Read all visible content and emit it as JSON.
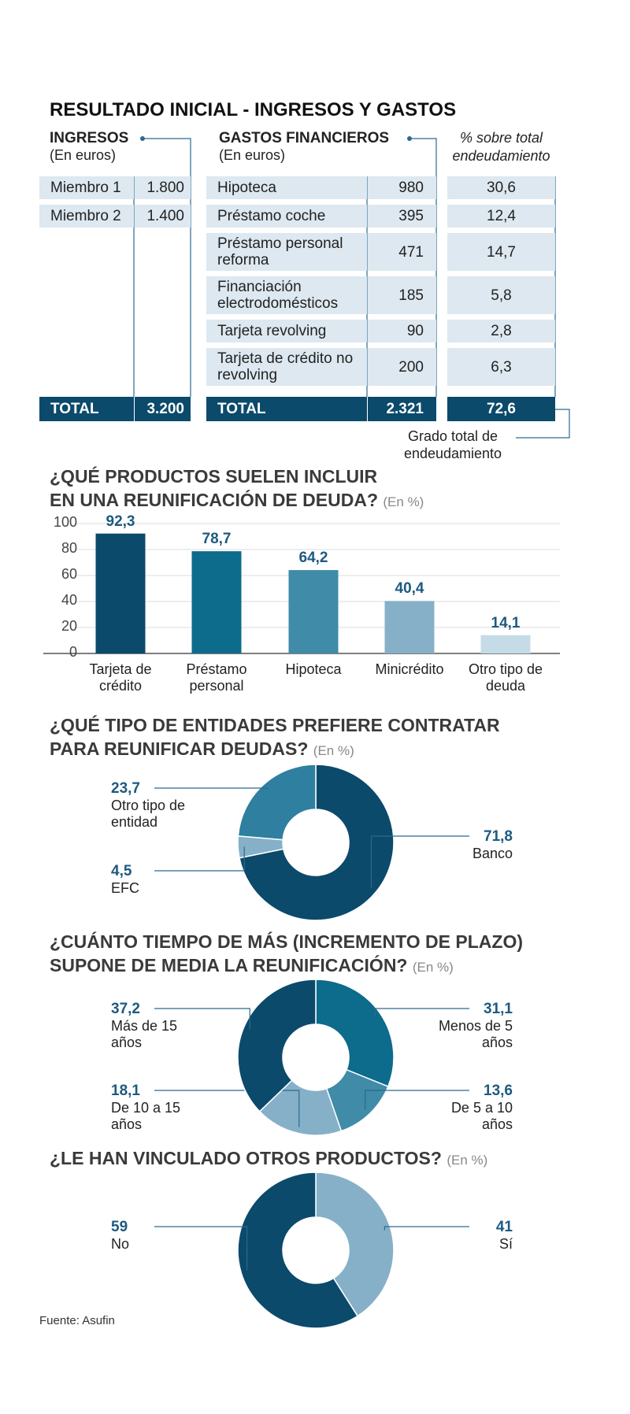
{
  "title": "RESULTADO INICIAL - INGRESOS Y GASTOS",
  "income_table": {
    "header": "INGRESOS",
    "unit": "(En euros)",
    "rows": [
      [
        "Miembro 1",
        "1.800"
      ],
      [
        "Miembro 2",
        "1.400"
      ]
    ],
    "total": [
      "TOTAL",
      "3.200"
    ]
  },
  "expenses_table": {
    "header": "GASTOS FINANCIEROS",
    "unit": "(En euros)",
    "share_header": "% sobre total endeudamiento",
    "rows": [
      [
        "Hipoteca",
        "980",
        "30,6"
      ],
      [
        "Préstamo coche",
        "395",
        "12,4"
      ],
      [
        "Préstamo personal reforma",
        "471",
        "14,7"
      ],
      [
        "Financiación electrodomésticos",
        "185",
        "5,8"
      ],
      [
        "Tarjeta revolving",
        "90",
        "2,8"
      ],
      [
        "Tarjeta de crédito no revolving",
        "200",
        "6,3"
      ]
    ],
    "total": [
      "TOTAL",
      "2.321",
      "72,6"
    ],
    "total_note": "Grado total de endeudamiento"
  },
  "chart_data": [
    {
      "type": "bar",
      "title": [
        "¿QUÉ PRODUCTOS SUELEN INCLUIR",
        "EN UNA REUNIFICACIÓN DE DEUDA?"
      ],
      "subtitle": "(En %)",
      "categories": [
        "Tarjeta de crédito",
        "Préstamo personal",
        "Hipoteca",
        "Minicrédito",
        "Otro tipo de deuda"
      ],
      "values": [
        92.3,
        78.7,
        64.2,
        40.4,
        14.1
      ],
      "value_labels": [
        "92,3",
        "78,7",
        "64,2",
        "40,4",
        "14,1"
      ],
      "colors": [
        "#0b4a6b",
        "#0d6b8c",
        "#3f8ba8",
        "#86b0c8",
        "#c5dbe7"
      ],
      "ylim": [
        0,
        100
      ],
      "yticks": [
        0,
        20,
        40,
        60,
        80,
        100
      ],
      "grid": true
    },
    {
      "type": "donut",
      "title": [
        "¿QUÉ TIPO DE ENTIDADES PREFIERE CONTRATAR",
        "PARA REUNIFICAR DEUDAS?"
      ],
      "subtitle": "(En %)",
      "categories": [
        "Banco",
        "EFC",
        "Otro tipo de entidad"
      ],
      "values": [
        71.8,
        4.5,
        23.7
      ],
      "value_labels": [
        "71,8",
        "4,5",
        "23,7"
      ],
      "colors": [
        "#0b4a6b",
        "#86b0c8",
        "#2f7fa0"
      ]
    },
    {
      "type": "donut",
      "title": [
        "¿CUÁNTO TIEMPO DE MÁS (INCREMENTO DE PLAZO)",
        "SUPONE DE MEDIA LA REUNIFICACIÓN?"
      ],
      "subtitle": "(En %)",
      "categories": [
        "Menos de 5 años",
        "De 5 a 10 años",
        "De 10 a 15 años",
        "Más de 15 años"
      ],
      "values": [
        31.1,
        13.6,
        18.1,
        37.2
      ],
      "value_labels": [
        "31,1",
        "13,6",
        "18,1",
        "37,2"
      ],
      "colors": [
        "#0d6b8c",
        "#3f8ba8",
        "#86b0c8",
        "#0b4a6b"
      ]
    },
    {
      "type": "donut",
      "title": [
        "¿LE HAN VINCULADO OTROS PRODUCTOS?"
      ],
      "subtitle": "(En %)",
      "categories": [
        "Sí",
        "No"
      ],
      "values": [
        41,
        59
      ],
      "value_labels": [
        "41",
        "59"
      ],
      "colors": [
        "#86b0c8",
        "#0b4a6b"
      ]
    }
  ],
  "source": "Fuente: Asufin"
}
